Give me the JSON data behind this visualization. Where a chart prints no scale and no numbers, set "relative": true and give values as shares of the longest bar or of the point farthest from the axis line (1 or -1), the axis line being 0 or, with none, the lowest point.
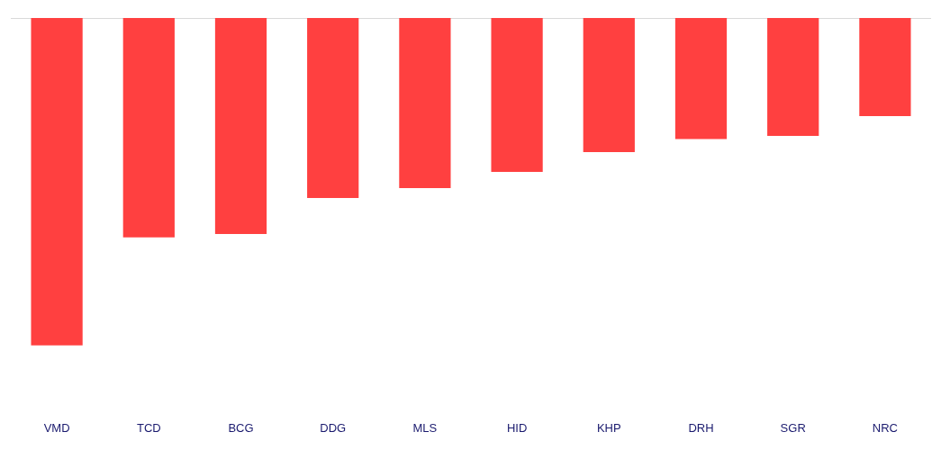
{
  "chart_data": {
    "type": "bar",
    "relative": true,
    "categories": [
      "VMD",
      "TCD",
      "BCG",
      "DDG",
      "MLS",
      "HID",
      "KHP",
      "DRH",
      "SGR",
      "NRC"
    ],
    "values": [
      -1,
      -0.67,
      -0.66,
      -0.55,
      -0.52,
      -0.47,
      -0.41,
      -0.37,
      -0.36,
      -0.3
    ],
    "color": "#ff4040"
  }
}
